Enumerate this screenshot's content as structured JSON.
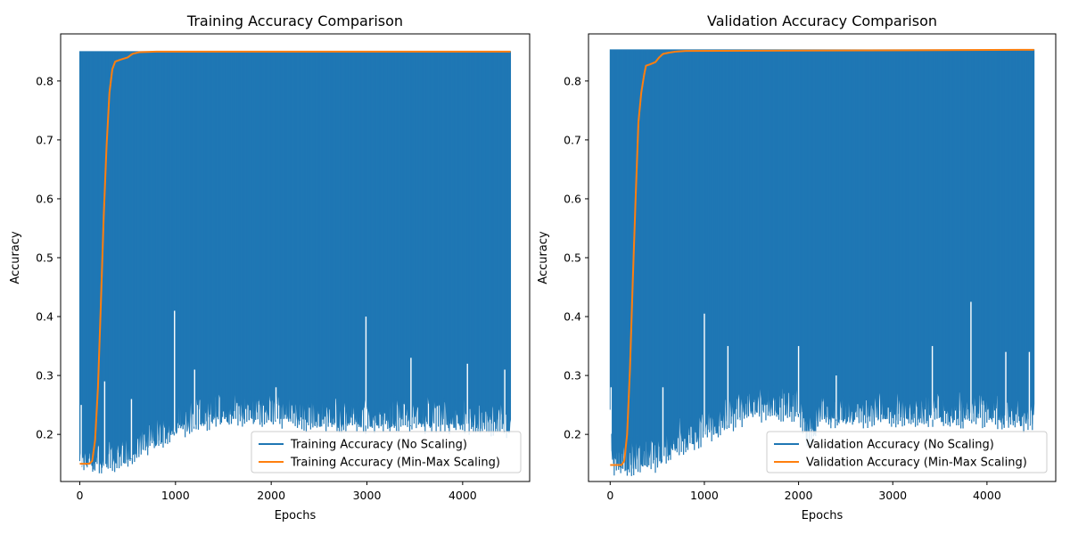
{
  "colors": {
    "no_scaling": "#1f77b4",
    "min_max_scaling": "#ff7f0e",
    "axes": "#000000",
    "background": "#ffffff"
  },
  "chart_data": [
    {
      "type": "line",
      "title": "Training Accuracy Comparison",
      "xlabel": "Epochs",
      "ylabel": "Accuracy",
      "xlim": [
        -200,
        4700
      ],
      "ylim": [
        0.12,
        0.88
      ],
      "xticks": [
        "0",
        "1000",
        "2000",
        "3000",
        "4000"
      ],
      "xtick_values": [
        0,
        1000,
        2000,
        3000,
        4000
      ],
      "yticks": [
        "0.2",
        "0.3",
        "0.4",
        "0.5",
        "0.6",
        "0.7",
        "0.8"
      ],
      "ytick_values": [
        0.2,
        0.3,
        0.4,
        0.5,
        0.6,
        0.7,
        0.8
      ],
      "grid": false,
      "legend_position": "lower right",
      "series": [
        {
          "name": "Training Accuracy (No Scaling)",
          "color_key": "no_scaling",
          "style": "oscillating band",
          "upper": 0.85,
          "lower_envelope": [
            [
              0,
              0.15
            ],
            [
              250,
              0.15
            ],
            [
              500,
              0.16
            ],
            [
              700,
              0.18
            ],
            [
              1000,
              0.21
            ],
            [
              1500,
              0.23
            ],
            [
              2000,
              0.23
            ],
            [
              2500,
              0.22
            ],
            [
              3000,
              0.22
            ],
            [
              3500,
              0.22
            ],
            [
              4000,
              0.22
            ],
            [
              4500,
              0.21
            ]
          ],
          "spikes": [
            [
              15,
              0.25
            ],
            [
              260,
              0.29
            ],
            [
              540,
              0.26
            ],
            [
              990,
              0.41
            ],
            [
              1200,
              0.31
            ],
            [
              2050,
              0.28
            ],
            [
              2990,
              0.4
            ],
            [
              3460,
              0.33
            ],
            [
              4050,
              0.32
            ],
            [
              4440,
              0.31
            ]
          ],
          "x_range": [
            0,
            4500
          ]
        },
        {
          "name": "Training Accuracy (Min-Max Scaling)",
          "color_key": "min_max_scaling",
          "style": "line",
          "points": [
            [
              0,
              0.15
            ],
            [
              100,
              0.15
            ],
            [
              130,
              0.155
            ],
            [
              160,
              0.19
            ],
            [
              190,
              0.28
            ],
            [
              220,
              0.42
            ],
            [
              250,
              0.57
            ],
            [
              280,
              0.69
            ],
            [
              310,
              0.78
            ],
            [
              340,
              0.82
            ],
            [
              370,
              0.833
            ],
            [
              420,
              0.836
            ],
            [
              500,
              0.84
            ],
            [
              550,
              0.846
            ],
            [
              620,
              0.849
            ],
            [
              800,
              0.85
            ],
            [
              4500,
              0.85
            ]
          ]
        }
      ]
    },
    {
      "type": "line",
      "title": "Validation Accuracy Comparison",
      "xlabel": "Epochs",
      "ylabel": "Accuracy",
      "xlim": [
        -230,
        4730
      ],
      "ylim": [
        0.12,
        0.88
      ],
      "xticks": [
        "0",
        "1000",
        "2000",
        "3000",
        "4000"
      ],
      "xtick_values": [
        0,
        1000,
        2000,
        3000,
        4000
      ],
      "yticks": [
        "0.2",
        "0.3",
        "0.4",
        "0.5",
        "0.6",
        "0.7",
        "0.8"
      ],
      "ytick_values": [
        0.2,
        0.3,
        0.4,
        0.5,
        0.6,
        0.7,
        0.8
      ],
      "grid": false,
      "legend_position": "lower right",
      "series": [
        {
          "name": "Validation Accuracy (No Scaling)",
          "color_key": "no_scaling",
          "style": "oscillating band",
          "upper": 0.853,
          "lower_envelope": [
            [
              0,
              0.235
            ],
            [
              30,
              0.148
            ],
            [
              250,
              0.148
            ],
            [
              500,
              0.155
            ],
            [
              700,
              0.18
            ],
            [
              1000,
              0.2
            ],
            [
              1500,
              0.24
            ],
            [
              2000,
              0.24
            ],
            [
              2100,
              0.19
            ],
            [
              2250,
              0.23
            ],
            [
              2500,
              0.23
            ],
            [
              3000,
              0.23
            ],
            [
              3500,
              0.23
            ],
            [
              4000,
              0.23
            ],
            [
              4500,
              0.22
            ]
          ],
          "spikes": [
            [
              10,
              0.28
            ],
            [
              560,
              0.28
            ],
            [
              1000,
              0.405
            ],
            [
              1250,
              0.35
            ],
            [
              2000,
              0.35
            ],
            [
              2400,
              0.3
            ],
            [
              3420,
              0.35
            ],
            [
              3830,
              0.425
            ],
            [
              4200,
              0.34
            ],
            [
              4450,
              0.34
            ]
          ],
          "x_range": [
            0,
            4500
          ]
        },
        {
          "name": "Validation Accuracy (Min-Max Scaling)",
          "color_key": "min_max_scaling",
          "style": "line",
          "points": [
            [
              0,
              0.148
            ],
            [
              120,
              0.148
            ],
            [
              150,
              0.155
            ],
            [
              180,
              0.2
            ],
            [
              210,
              0.31
            ],
            [
              240,
              0.46
            ],
            [
              270,
              0.6
            ],
            [
              300,
              0.73
            ],
            [
              330,
              0.78
            ],
            [
              360,
              0.81
            ],
            [
              380,
              0.826
            ],
            [
              420,
              0.828
            ],
            [
              480,
              0.832
            ],
            [
              520,
              0.84
            ],
            [
              560,
              0.846
            ],
            [
              620,
              0.848
            ],
            [
              700,
              0.85
            ],
            [
              800,
              0.851
            ],
            [
              4500,
              0.853
            ]
          ]
        }
      ]
    }
  ]
}
